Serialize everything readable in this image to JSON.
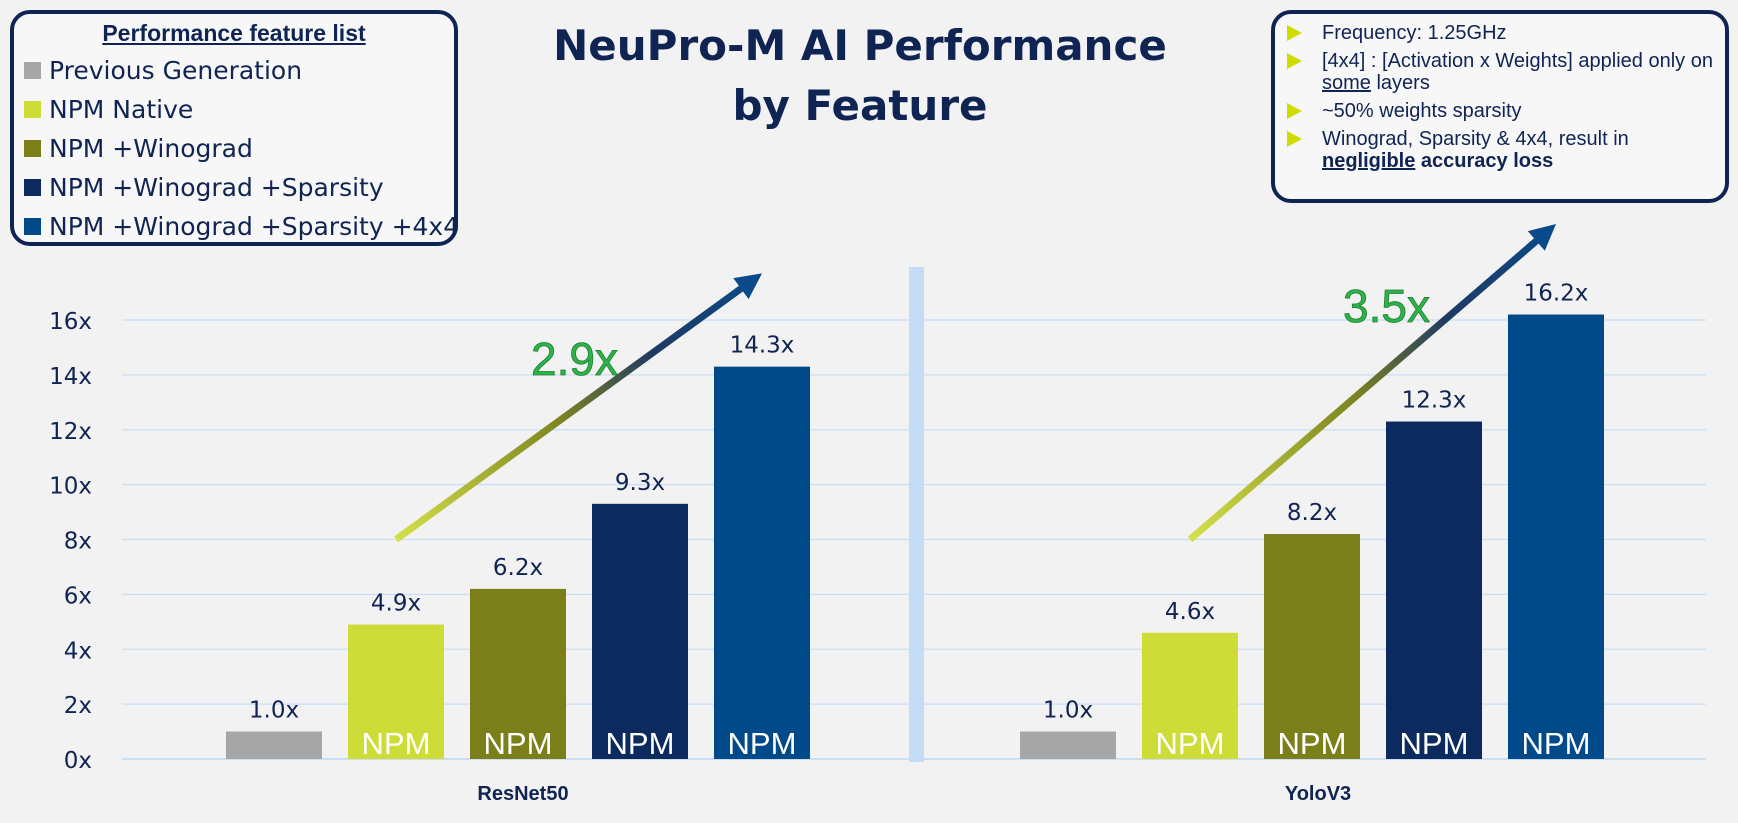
{
  "title": {
    "line1": "NeuPro-M AI Performance",
    "line2": "by Feature"
  },
  "legend": {
    "title": "Performance feature list",
    "items": [
      {
        "label": "Previous Generation",
        "color": "#a6a6a6"
      },
      {
        "label": "NPM Native",
        "color": "#cedc37"
      },
      {
        "label": "NPM +Winograd",
        "color": "#7a7f1a"
      },
      {
        "label": "NPM +Winograd +Sparsity",
        "color": "#0c2a5e"
      },
      {
        "label": "NPM +Winograd +Sparsity +4x4",
        "color": "#004a8a"
      }
    ]
  },
  "notes": [
    {
      "text": "Frequency: 1.25GHz"
    },
    {
      "pre": "[4x4] : [Activation x Weights] applied only on ",
      "underline": "some",
      "post": " layers"
    },
    {
      "text": "~50% weights sparsity"
    },
    {
      "pre": "Winograd, Sparsity & 4x4, result in ",
      "underline_bold": "negligible",
      "bold": " accuracy loss"
    }
  ],
  "chart_data": {
    "type": "bar",
    "categories": [
      "ResNet50",
      "YoloV3"
    ],
    "series": [
      {
        "name": "Previous Generation",
        "values": [
          1.0,
          1.0
        ],
        "labels": [
          "1.0x",
          "1.0x"
        ],
        "bar_text": ""
      },
      {
        "name": "NPM Native",
        "values": [
          4.9,
          4.6
        ],
        "labels": [
          "4.9x",
          "4.6x"
        ],
        "bar_text": "NPM"
      },
      {
        "name": "NPM +Winograd",
        "values": [
          6.2,
          8.2
        ],
        "labels": [
          "6.2x",
          "8.2x"
        ],
        "bar_text": "NPM"
      },
      {
        "name": "NPM +Winograd +Sparsity",
        "values": [
          9.3,
          12.3
        ],
        "labels": [
          "9.3x",
          "12.3x"
        ],
        "bar_text": "NPM"
      },
      {
        "name": "NPM +Winograd +Sparsity +4x4",
        "values": [
          14.3,
          16.2
        ],
        "labels": [
          "14.3x",
          "16.2x"
        ],
        "bar_text": "NPM"
      }
    ],
    "ylim": [
      0,
      18
    ],
    "yticks": [
      0,
      2,
      4,
      6,
      8,
      10,
      12,
      14,
      16
    ],
    "ytick_labels": [
      "0x",
      "2x",
      "4x",
      "6x",
      "8x",
      "10x",
      "12x",
      "14x",
      "16x"
    ],
    "gridlines": true,
    "annotations": [
      {
        "group": "ResNet50",
        "text": "2.9x",
        "color": "#2db34a"
      },
      {
        "group": "YoloV3",
        "text": "3.5x",
        "color": "#2db34a"
      }
    ]
  }
}
